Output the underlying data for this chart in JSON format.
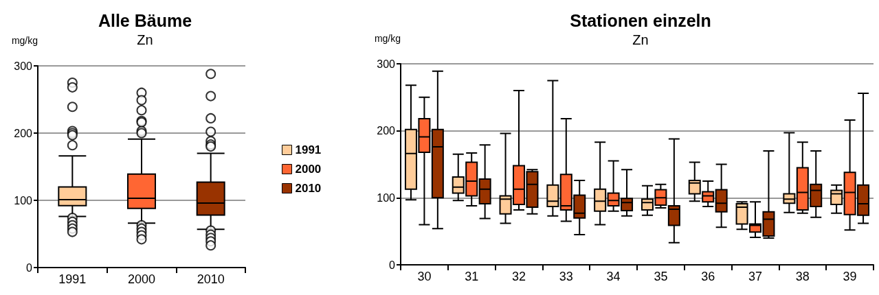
{
  "chart_data": [
    {
      "type": "box",
      "title": "Alle Bäume",
      "subtitle": "Zn",
      "ylabel": "mg/kg",
      "categories": [
        "1991",
        "2000",
        "2010"
      ],
      "colors": [
        "#ffcc99",
        "#ff6633",
        "#993300"
      ],
      "boxes": [
        {
          "low": 76,
          "q1": 92,
          "median": 101,
          "q3": 120,
          "high": 166,
          "outliers": [
            275,
            268,
            239,
            203,
            200,
            197,
            182,
            74,
            68,
            63,
            58,
            53
          ]
        },
        {
          "low": 66,
          "q1": 88,
          "median": 103,
          "q3": 139,
          "high": 191,
          "outliers": [
            260,
            249,
            234,
            218,
            216,
            203,
            200,
            63,
            58,
            53,
            48,
            42
          ]
        },
        {
          "low": 57,
          "q1": 78,
          "median": 96,
          "q3": 127,
          "high": 170,
          "outliers": [
            288,
            255,
            222,
            202,
            188,
            183,
            180,
            55,
            49,
            44,
            39,
            33
          ]
        }
      ],
      "ylim": [
        0,
        300
      ],
      "yticks": [
        0,
        100,
        200,
        300
      ],
      "grid": "y"
    },
    {
      "type": "box",
      "title": "Stationen einzeln",
      "subtitle": "Zn",
      "ylabel": "mg/kg",
      "categories": [
        "30",
        "31",
        "32",
        "33",
        "34",
        "35",
        "36",
        "37",
        "38",
        "39"
      ],
      "ylim": [
        0,
        300
      ],
      "yticks": [
        0,
        100,
        200,
        300
      ],
      "grid": "y",
      "legend": "left",
      "series": [
        {
          "name": "1991",
          "color": "#ffcc99",
          "boxes": [
            {
              "low": 97,
              "q1": 113,
              "median": 166,
              "q3": 202,
              "high": 268
            },
            {
              "low": 96,
              "q1": 107,
              "median": 116,
              "q3": 131,
              "high": 165
            },
            {
              "low": 62,
              "q1": 76,
              "median": 98,
              "q3": 103,
              "high": 196
            },
            {
              "low": 73,
              "q1": 87,
              "median": 95,
              "q3": 119,
              "high": 275
            },
            {
              "low": 60,
              "q1": 80,
              "median": 95,
              "q3": 113,
              "high": 183
            },
            {
              "low": 74,
              "q1": 82,
              "median": 93,
              "q3": 98,
              "high": 118
            },
            {
              "low": 95,
              "q1": 106,
              "median": 122,
              "q3": 126,
              "high": 153
            },
            {
              "low": 53,
              "q1": 61,
              "median": 86,
              "q3": 91,
              "high": 94
            },
            {
              "low": 78,
              "q1": 92,
              "median": 98,
              "q3": 106,
              "high": 197
            },
            {
              "low": 77,
              "q1": 90,
              "median": 106,
              "q3": 111,
              "high": 119
            }
          ]
        },
        {
          "name": "2000",
          "color": "#ff6633",
          "boxes": [
            {
              "low": 60,
              "q1": 168,
              "median": 191,
              "q3": 218,
              "high": 250
            },
            {
              "low": 88,
              "q1": 103,
              "median": 125,
              "q3": 153,
              "high": 167
            },
            {
              "low": 82,
              "q1": 90,
              "median": 113,
              "q3": 148,
              "high": 260
            },
            {
              "low": 65,
              "q1": 82,
              "median": 88,
              "q3": 135,
              "high": 218
            },
            {
              "low": 80,
              "q1": 88,
              "median": 96,
              "q3": 107,
              "high": 155
            },
            {
              "low": 85,
              "q1": 89,
              "median": 100,
              "q3": 112,
              "high": 120
            },
            {
              "low": 87,
              "q1": 94,
              "median": 103,
              "q3": 109,
              "high": 125
            },
            {
              "low": 41,
              "q1": 49,
              "median": 59,
              "q3": 61,
              "high": 94
            },
            {
              "low": 77,
              "q1": 82,
              "median": 108,
              "q3": 145,
              "high": 183
            },
            {
              "low": 52,
              "q1": 75,
              "median": 108,
              "q3": 138,
              "high": 216
            }
          ]
        },
        {
          "name": "2010",
          "color": "#993300",
          "boxes": [
            {
              "low": 54,
              "q1": 100,
              "median": 176,
              "q3": 202,
              "high": 289
            },
            {
              "low": 69,
              "q1": 91,
              "median": 113,
              "q3": 128,
              "high": 179
            },
            {
              "low": 76,
              "q1": 86,
              "median": 120,
              "q3": 139,
              "high": 142
            },
            {
              "low": 45,
              "q1": 70,
              "median": 77,
              "q3": 104,
              "high": 126
            },
            {
              "low": 73,
              "q1": 81,
              "median": 93,
              "q3": 99,
              "high": 142
            },
            {
              "low": 33,
              "q1": 59,
              "median": 83,
              "q3": 88,
              "high": 188
            },
            {
              "low": 56,
              "q1": 79,
              "median": 92,
              "q3": 112,
              "high": 150
            },
            {
              "low": 40,
              "q1": 43,
              "median": 68,
              "q3": 79,
              "high": 170
            },
            {
              "low": 71,
              "q1": 87,
              "median": 111,
              "q3": 120,
              "high": 170
            },
            {
              "low": 62,
              "q1": 74,
              "median": 91,
              "q3": 119,
              "high": 256
            }
          ]
        }
      ]
    }
  ]
}
